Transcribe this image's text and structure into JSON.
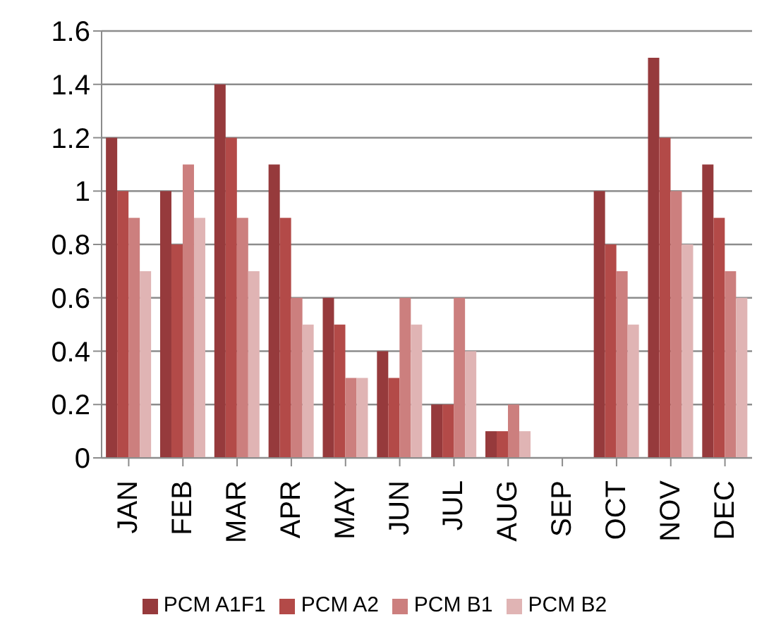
{
  "chart_data": {
    "type": "bar",
    "categories": [
      "JAN",
      "FEB",
      "MAR",
      "APR",
      "MAY",
      "JUN",
      "JUL",
      "AUG",
      "SEP",
      "OCT",
      "NOV",
      "DEC"
    ],
    "series": [
      {
        "name": "PCM A1F1",
        "color": "#963a3c",
        "values": [
          1.2,
          1.0,
          1.4,
          1.1,
          0.6,
          0.4,
          0.2,
          0.1,
          0,
          1.0,
          1.5,
          1.1
        ]
      },
      {
        "name": "PCM A2",
        "color": "#b34a48",
        "values": [
          1.0,
          0.8,
          1.2,
          0.9,
          0.5,
          0.3,
          0.2,
          0.1,
          0,
          0.8,
          1.2,
          0.9
        ]
      },
      {
        "name": "PCM B1",
        "color": "#cc7f7e",
        "values": [
          0.9,
          1.1,
          0.9,
          0.6,
          0.3,
          0.6,
          0.6,
          0.2,
          0,
          0.7,
          1.0,
          0.7
        ]
      },
      {
        "name": "PCM B2",
        "color": "#e0b4b4",
        "values": [
          0.7,
          0.9,
          0.7,
          0.5,
          0.3,
          0.5,
          0.4,
          0.1,
          0,
          0.5,
          0.8,
          0.6
        ]
      }
    ],
    "ylim": [
      0,
      1.6
    ],
    "yticks": [
      0,
      0.2,
      0.4,
      0.6,
      0.8,
      1,
      1.2,
      1.4,
      1.6
    ],
    "grid": "y",
    "legend": "bottom"
  }
}
